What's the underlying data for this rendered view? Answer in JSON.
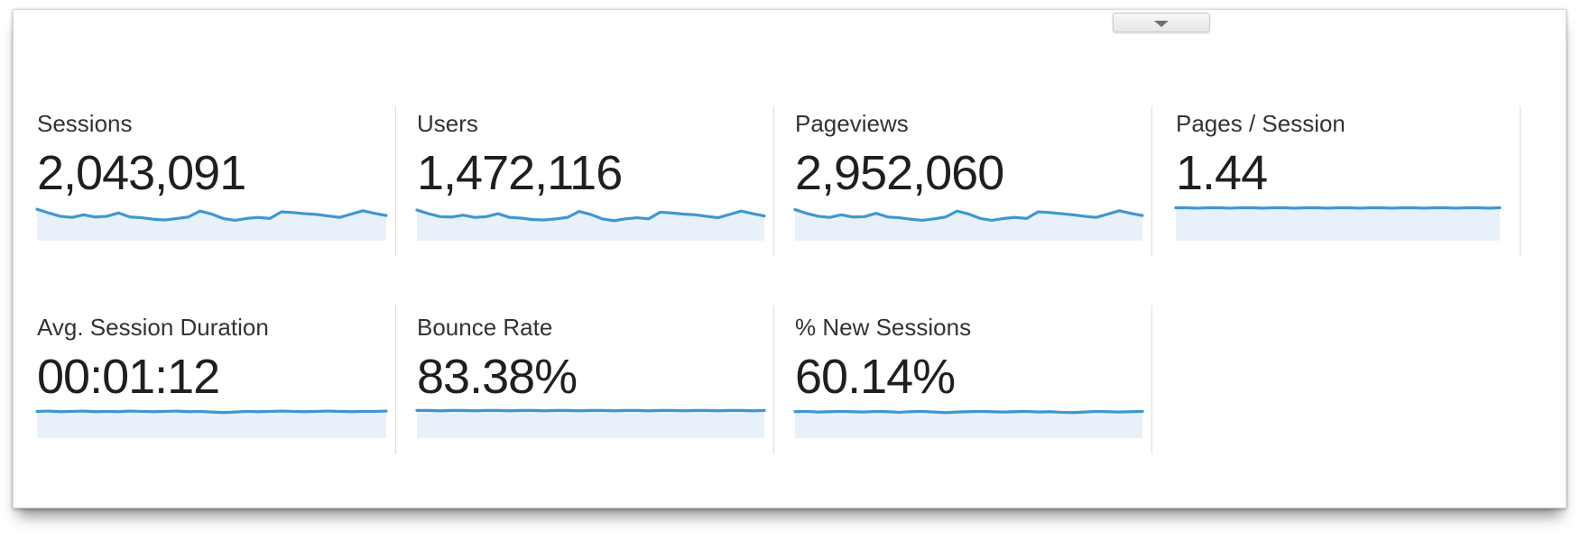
{
  "panel": {
    "collapse_button": {
      "icon": "chevron-down"
    },
    "colors": {
      "spark_line": "#3e97d2",
      "spark_fill": "#e8f1f9",
      "divider": "#dcdcdc",
      "label_text": "#333333",
      "value_text": "#1f1f1f",
      "button_arrow": "#6e6e6e"
    },
    "rows": [
      {
        "metrics": [
          {
            "id": "sessions",
            "label": "Sessions",
            "value": "2,043,091"
          },
          {
            "id": "users",
            "label": "Users",
            "value": "1,472,116"
          },
          {
            "id": "pageviews",
            "label": "Pageviews",
            "value": "2,952,060"
          },
          {
            "id": "pages-per-session",
            "label": "Pages / Session",
            "value": "1.44"
          }
        ]
      },
      {
        "metrics": [
          {
            "id": "avg-session-duration",
            "label": "Avg. Session Duration",
            "value": "00:01:12"
          },
          {
            "id": "bounce-rate",
            "label": "Bounce Rate",
            "value": "83.38%"
          },
          {
            "id": "new-sessions",
            "label": "% New Sessions",
            "value": "60.14%"
          }
        ]
      }
    ]
  },
  "chart_data": [
    {
      "id": "sessions",
      "type": "line",
      "title": "Sessions sparkline",
      "note": "sparkline, axes unlabeled; y normalized 0=top 1=bottom of spark area",
      "y_normalized": [
        0.15,
        0.25,
        0.34,
        0.37,
        0.3,
        0.36,
        0.34,
        0.25,
        0.36,
        0.38,
        0.42,
        0.44,
        0.4,
        0.36,
        0.2,
        0.28,
        0.4,
        0.45,
        0.4,
        0.37,
        0.4,
        0.22,
        0.24,
        0.27,
        0.29,
        0.33,
        0.37,
        0.28,
        0.19,
        0.26,
        0.32
      ]
    },
    {
      "id": "users",
      "type": "line",
      "title": "Users sparkline",
      "note": "sparkline, axes unlabeled",
      "y_normalized": [
        0.17,
        0.27,
        0.35,
        0.36,
        0.31,
        0.37,
        0.35,
        0.27,
        0.37,
        0.39,
        0.43,
        0.44,
        0.41,
        0.37,
        0.21,
        0.29,
        0.41,
        0.46,
        0.41,
        0.38,
        0.41,
        0.23,
        0.25,
        0.28,
        0.3,
        0.34,
        0.38,
        0.29,
        0.2,
        0.27,
        0.33
      ]
    },
    {
      "id": "pageviews",
      "type": "line",
      "title": "Pageviews sparkline",
      "note": "sparkline, axes unlabeled",
      "y_normalized": [
        0.16,
        0.26,
        0.34,
        0.37,
        0.3,
        0.36,
        0.35,
        0.26,
        0.36,
        0.38,
        0.42,
        0.45,
        0.41,
        0.36,
        0.2,
        0.28,
        0.4,
        0.45,
        0.4,
        0.37,
        0.4,
        0.22,
        0.24,
        0.27,
        0.3,
        0.34,
        0.37,
        0.28,
        0.19,
        0.26,
        0.32
      ]
    },
    {
      "id": "pages-per-session",
      "type": "line",
      "title": "Pages / Session sparkline",
      "note": "nearly flat line",
      "y_normalized": [
        0.11,
        0.11,
        0.12,
        0.11,
        0.11,
        0.12,
        0.11,
        0.11,
        0.12,
        0.11,
        0.11,
        0.12,
        0.11,
        0.11,
        0.12,
        0.11,
        0.11,
        0.12,
        0.11,
        0.11,
        0.12,
        0.11,
        0.11,
        0.12,
        0.11,
        0.11,
        0.12,
        0.11,
        0.11,
        0.12,
        0.11
      ]
    },
    {
      "id": "avg-session-duration",
      "type": "line",
      "title": "Avg. Session Duration sparkline",
      "note": "nearly flat line with slight wiggle",
      "y_normalized": [
        0.13,
        0.12,
        0.14,
        0.13,
        0.12,
        0.14,
        0.13,
        0.14,
        0.12,
        0.13,
        0.14,
        0.13,
        0.12,
        0.14,
        0.13,
        0.15,
        0.17,
        0.15,
        0.13,
        0.14,
        0.13,
        0.12,
        0.13,
        0.14,
        0.13,
        0.12,
        0.13,
        0.14,
        0.13,
        0.13,
        0.12
      ]
    },
    {
      "id": "bounce-rate",
      "type": "line",
      "title": "Bounce Rate sparkline",
      "note": "nearly flat line",
      "y_normalized": [
        0.1,
        0.1,
        0.11,
        0.1,
        0.1,
        0.11,
        0.1,
        0.1,
        0.11,
        0.1,
        0.1,
        0.11,
        0.1,
        0.1,
        0.11,
        0.1,
        0.1,
        0.11,
        0.1,
        0.1,
        0.11,
        0.1,
        0.1,
        0.11,
        0.1,
        0.1,
        0.11,
        0.1,
        0.1,
        0.11,
        0.1
      ]
    },
    {
      "id": "new-sessions",
      "type": "line",
      "title": "% New Sessions sparkline",
      "note": "nearly flat line with slight wiggle",
      "y_normalized": [
        0.14,
        0.13,
        0.15,
        0.14,
        0.13,
        0.14,
        0.15,
        0.13,
        0.14,
        0.16,
        0.14,
        0.13,
        0.15,
        0.17,
        0.15,
        0.14,
        0.13,
        0.14,
        0.15,
        0.14,
        0.13,
        0.15,
        0.14,
        0.16,
        0.17,
        0.15,
        0.13,
        0.14,
        0.15,
        0.14,
        0.13
      ]
    }
  ]
}
